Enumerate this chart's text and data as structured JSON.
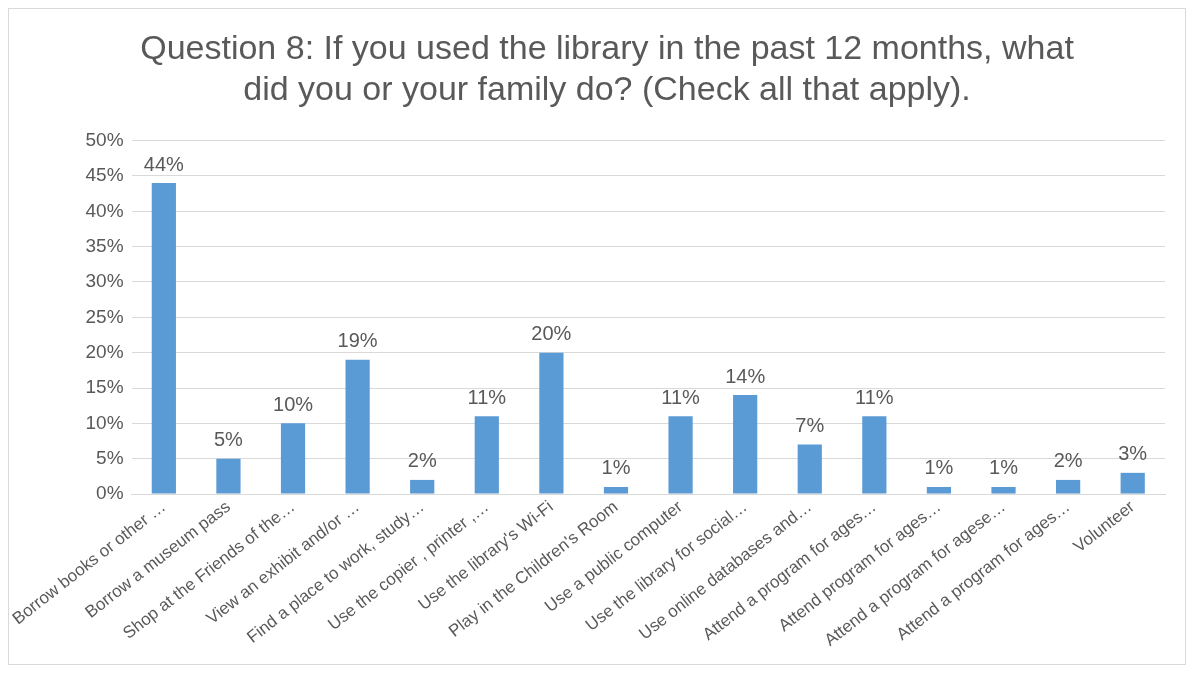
{
  "chart_data": {
    "type": "bar",
    "title": "Question 8: If you used the library in the past 12 months, what did you or your family do? (Check all that apply).",
    "categories": [
      "Borrow books or other …",
      "Borrow a museum pass",
      "Shop at the Friends of the…",
      "View an exhibit and/or …",
      "Find a place to work, study…",
      "Use the copier , printer ,…",
      "Use the library's Wi-Fi",
      "Play in the Children's Room",
      "Use a public computer",
      "Use the library for social…",
      "Use online databases and…",
      "Attend a program for ages…",
      "Attend program for ages…",
      "Attend a program for agese…",
      "Attend a program for ages…",
      "Volunteer"
    ],
    "values": [
      44,
      5,
      10,
      19,
      2,
      11,
      20,
      1,
      11,
      14,
      7,
      11,
      1,
      1,
      2,
      3
    ],
    "value_labels": [
      "44%",
      "5%",
      "10%",
      "19%",
      "2%",
      "11%",
      "20%",
      "1%",
      "11%",
      "14%",
      "7%",
      "11%",
      "1%",
      "1%",
      "2%",
      "3%"
    ],
    "color": "#5b9bd5",
    "ylim": [
      0,
      50
    ],
    "yticks": [
      {
        "value": 0,
        "label": "0%"
      },
      {
        "value": 5,
        "label": "5%"
      },
      {
        "value": 10,
        "label": "10%"
      },
      {
        "value": 15,
        "label": "15%"
      },
      {
        "value": 20,
        "label": "20%"
      },
      {
        "value": 25,
        "label": "25%"
      },
      {
        "value": 30,
        "label": "30%"
      },
      {
        "value": 35,
        "label": "35%"
      },
      {
        "value": 40,
        "label": "40%"
      },
      {
        "value": 45,
        "label": "45%"
      },
      {
        "value": 50,
        "label": "50%"
      }
    ],
    "grid": "y",
    "legend": false
  }
}
